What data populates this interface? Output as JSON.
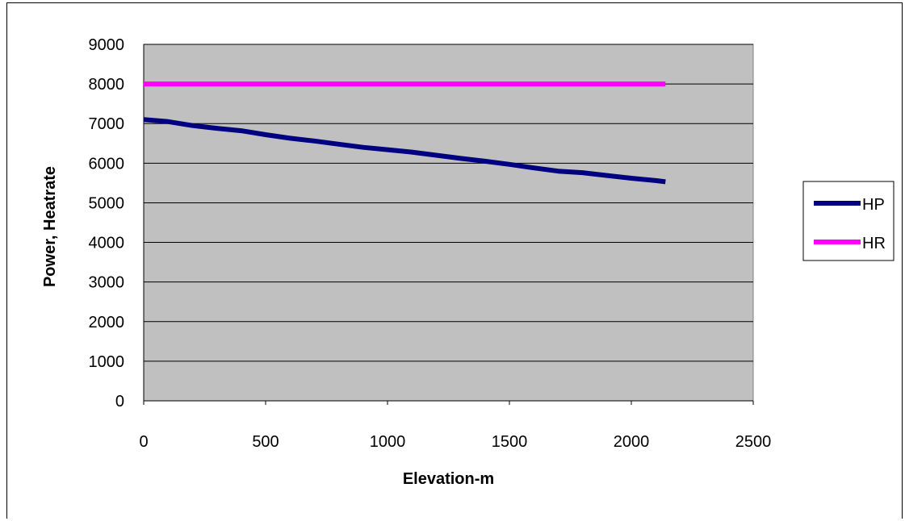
{
  "chart_data": {
    "type": "line",
    "title": "",
    "xlabel": "Elevation-m",
    "ylabel": "Power, Heatrate",
    "xlim": [
      0,
      2500
    ],
    "ylim": [
      0,
      9000
    ],
    "xticks": [
      "0",
      "500",
      "1000",
      "1500",
      "2000",
      "2500"
    ],
    "yticks": [
      "0",
      "1000",
      "2000",
      "3000",
      "4000",
      "5000",
      "6000",
      "7000",
      "8000",
      "9000"
    ],
    "grid": "horizontal",
    "legend_position": "right",
    "plot_background": "#c0c0c0",
    "series": [
      {
        "name": "HP",
        "color": "#000080",
        "x": [
          0,
          100,
          200,
          300,
          400,
          500,
          600,
          700,
          800,
          900,
          1000,
          1100,
          1200,
          1300,
          1400,
          1500,
          1600,
          1700,
          1800,
          1900,
          2000,
          2100,
          2140
        ],
        "y": [
          7100,
          7050,
          6950,
          6880,
          6820,
          6720,
          6630,
          6560,
          6480,
          6400,
          6340,
          6280,
          6200,
          6120,
          6050,
          5970,
          5880,
          5800,
          5760,
          5690,
          5620,
          5560,
          5530
        ]
      },
      {
        "name": "HR",
        "color": "#ff00ff",
        "x": [
          0,
          2140
        ],
        "y": [
          8000,
          8000
        ]
      }
    ]
  }
}
